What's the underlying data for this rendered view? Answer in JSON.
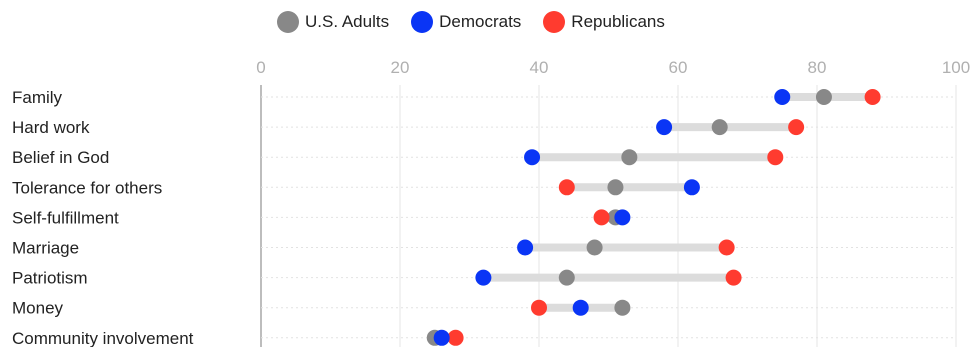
{
  "chart_data": {
    "type": "dot-range",
    "xlim": [
      0,
      100
    ],
    "xticks": [
      0,
      20,
      40,
      60,
      80,
      100
    ],
    "grid": true,
    "legend_position": "top",
    "categories": [
      "Family",
      "Hard work",
      "Belief in God",
      "Tolerance for others",
      "Self-fulfillment",
      "Marriage",
      "Patriotism",
      "Money",
      "Community involvement"
    ],
    "series": [
      {
        "name": "U.S. Adults",
        "color": "#888888",
        "values": [
          81,
          66,
          53,
          51,
          51,
          48,
          44,
          52,
          25
        ]
      },
      {
        "name": "Democrats",
        "color": "#0a35f5",
        "values": [
          75,
          58,
          39,
          62,
          52,
          38,
          32,
          46,
          26
        ]
      },
      {
        "name": "Republicans",
        "color": "#ff3b2f",
        "values": [
          88,
          77,
          74,
          44,
          49,
          67,
          68,
          40,
          28
        ]
      }
    ]
  }
}
